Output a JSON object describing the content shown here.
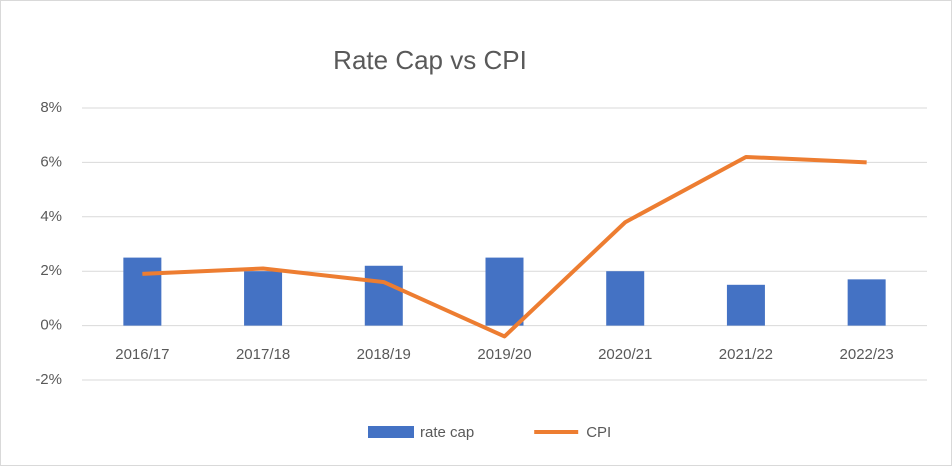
{
  "chart_data": {
    "type": "combo",
    "title": "Rate Cap vs CPI",
    "categories": [
      "2016/17",
      "2017/18",
      "2018/19",
      "2019/20",
      "2020/21",
      "2021/22",
      "2022/23"
    ],
    "series": [
      {
        "name": "rate cap",
        "type": "bar",
        "color": "#4472c4",
        "values": [
          2.5,
          2.0,
          2.2,
          2.5,
          2.0,
          1.5,
          1.7
        ]
      },
      {
        "name": "CPI",
        "type": "line",
        "color": "#ed7d31",
        "values": [
          1.9,
          2.1,
          1.6,
          -0.4,
          3.8,
          6.2,
          6.0
        ]
      }
    ],
    "ylim": [
      -2,
      8
    ],
    "yticks": [
      {
        "value": -2,
        "label": "-2%"
      },
      {
        "value": 0,
        "label": "0%"
      },
      {
        "value": 2,
        "label": "2%"
      },
      {
        "value": 4,
        "label": "4%"
      },
      {
        "value": 6,
        "label": "6%"
      },
      {
        "value": 8,
        "label": "8%"
      }
    ],
    "grid": true,
    "legend": "bottom"
  }
}
